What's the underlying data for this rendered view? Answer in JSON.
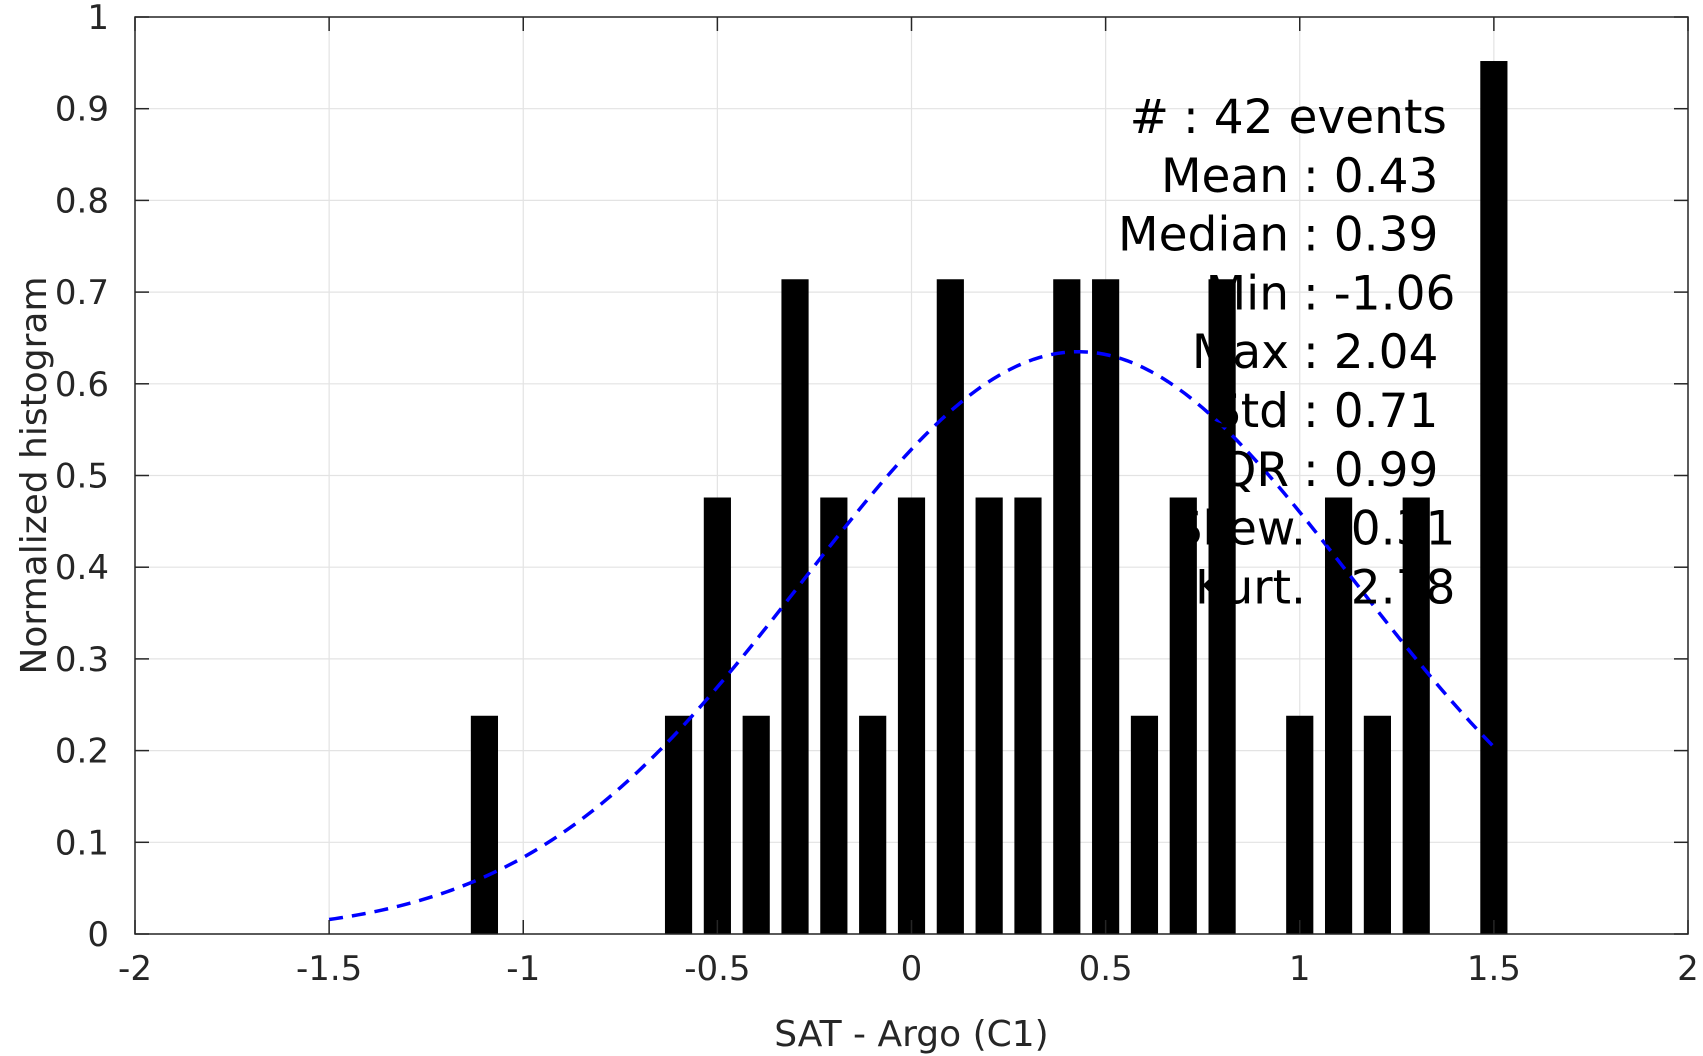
{
  "chart_data": {
    "type": "bar",
    "title": "",
    "xlabel": "SAT - Argo (C1)",
    "ylabel": "Normalized histogram",
    "xlim": [
      -2,
      2
    ],
    "ylim": [
      0,
      1
    ],
    "xticks": [
      -2,
      -1.5,
      -1,
      -0.5,
      0,
      0.5,
      1,
      1.5,
      2
    ],
    "yticks": [
      0,
      0.1,
      0.2,
      0.3,
      0.4,
      0.5,
      0.6,
      0.7,
      0.8,
      0.9,
      1
    ],
    "xtick_labels": [
      "-2",
      "-1.5",
      "-1",
      "-0.5",
      "0",
      "0.5",
      "1",
      "1.5",
      "2"
    ],
    "ytick_labels": [
      "0",
      "0.1",
      "0.2",
      "0.3",
      "0.4",
      "0.5",
      "0.6",
      "0.7",
      "0.8",
      "0.9",
      "1"
    ],
    "grid": true,
    "bar_color": "#000000",
    "fit_color": "#0000ff",
    "bar_width": 0.07,
    "bars": {
      "x": [
        -1.1,
        -0.6,
        -0.5,
        -0.4,
        -0.3,
        -0.2,
        -0.1,
        0.0,
        0.1,
        0.2,
        0.3,
        0.4,
        0.5,
        0.6,
        0.7,
        0.8,
        1.0,
        1.1,
        1.2,
        1.3,
        1.5
      ],
      "values": [
        0.238,
        0.238,
        0.476,
        0.238,
        0.714,
        0.476,
        0.238,
        0.476,
        0.714,
        0.476,
        0.476,
        0.714,
        0.714,
        0.238,
        0.476,
        0.714,
        0.238,
        0.476,
        0.238,
        0.476,
        0.952
      ]
    },
    "fit_curve": {
      "name": "normal fit",
      "style": "dashed",
      "mean": 0.43,
      "std": 0.71,
      "x_range": [
        -1.5,
        1.5
      ],
      "peak": 0.635
    },
    "stats_box": {
      "lines": [
        "#  : 42 events",
        "Mean : 0.43",
        "Median : 0.39",
        "Min : -1.06",
        "Max : 2.04",
        "Std : 0.71",
        "IQR : 0.99",
        "Skew. : 0.31",
        "Kurt. : 2.78"
      ]
    }
  }
}
